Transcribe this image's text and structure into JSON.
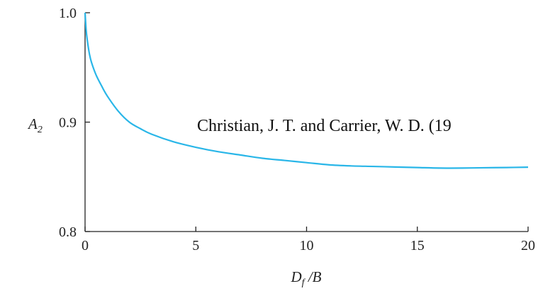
{
  "chart_data": {
    "type": "line",
    "title": "",
    "xlabel": {
      "main": "D",
      "sub": "f",
      "rest": " /B"
    },
    "ylabel": {
      "main": "A",
      "sub": "2"
    },
    "xlim": [
      0,
      20
    ],
    "ylim": [
      0.8,
      1.0
    ],
    "x_ticks": [
      "0",
      "5",
      "10",
      "15",
      "20"
    ],
    "y_ticks": [
      "0.8",
      "0.9",
      "1.0"
    ],
    "grid": false,
    "series": [
      {
        "color": "#29b6e8",
        "x": [
          0,
          0.05,
          0.1,
          0.2,
          0.3,
          0.5,
          0.75,
          1,
          1.5,
          2,
          2.5,
          3,
          4,
          5,
          6,
          7,
          8,
          9,
          10,
          11,
          12,
          13,
          14,
          15,
          16,
          17,
          18,
          19,
          20
        ],
        "y": [
          1.0,
          0.984,
          0.975,
          0.962,
          0.954,
          0.943,
          0.933,
          0.924,
          0.91,
          0.9,
          0.894,
          0.889,
          0.882,
          0.877,
          0.873,
          0.87,
          0.867,
          0.865,
          0.863,
          0.861,
          0.86,
          0.8595,
          0.859,
          0.8585,
          0.858,
          0.858,
          0.8583,
          0.8585,
          0.8588
        ]
      }
    ],
    "annotations": [
      "Christian, J. T. and Carrier, W. D. (19"
    ]
  }
}
